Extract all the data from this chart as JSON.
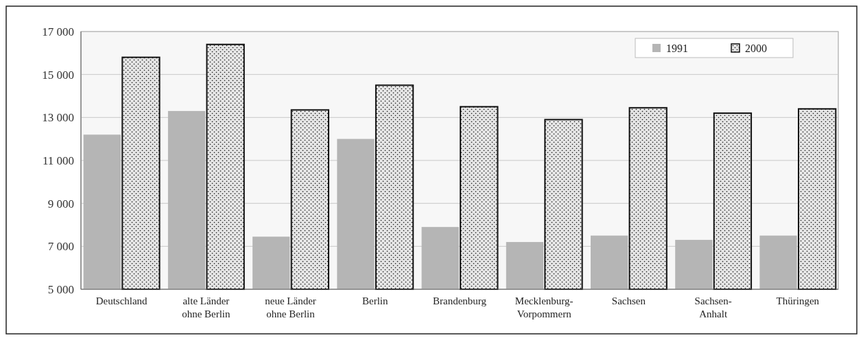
{
  "chart_data": {
    "type": "bar",
    "categories": [
      "Deutschland",
      "alte Länder\nohne Berlin",
      "neue Länder\nohne Berlin",
      "Berlin",
      "Brandenburg",
      "Mecklenburg-\nVorpommern",
      "Sachsen",
      "Sachsen-\nAnhalt",
      "Thüringen"
    ],
    "series": [
      {
        "name": "1991",
        "color": "#b5b5b5",
        "values": [
          12200,
          13300,
          7450,
          12000,
          7900,
          7200,
          7500,
          7300,
          7500
        ]
      },
      {
        "name": "2000",
        "color": "#111111",
        "values": [
          15800,
          16400,
          13350,
          14500,
          13500,
          12900,
          13450,
          13200,
          13400
        ]
      }
    ],
    "ylim": [
      5000,
      17000
    ],
    "yticks": [
      {
        "value": 5000,
        "label": "5 000"
      },
      {
        "value": 7000,
        "label": "7 000"
      },
      {
        "value": 9000,
        "label": "9 000"
      },
      {
        "value": 11000,
        "label": "11 000"
      },
      {
        "value": 13000,
        "label": "13 000"
      },
      {
        "value": 15000,
        "label": "15 000"
      },
      {
        "value": 17000,
        "label": "17 000"
      }
    ],
    "grid": "y",
    "legend": "top right"
  }
}
